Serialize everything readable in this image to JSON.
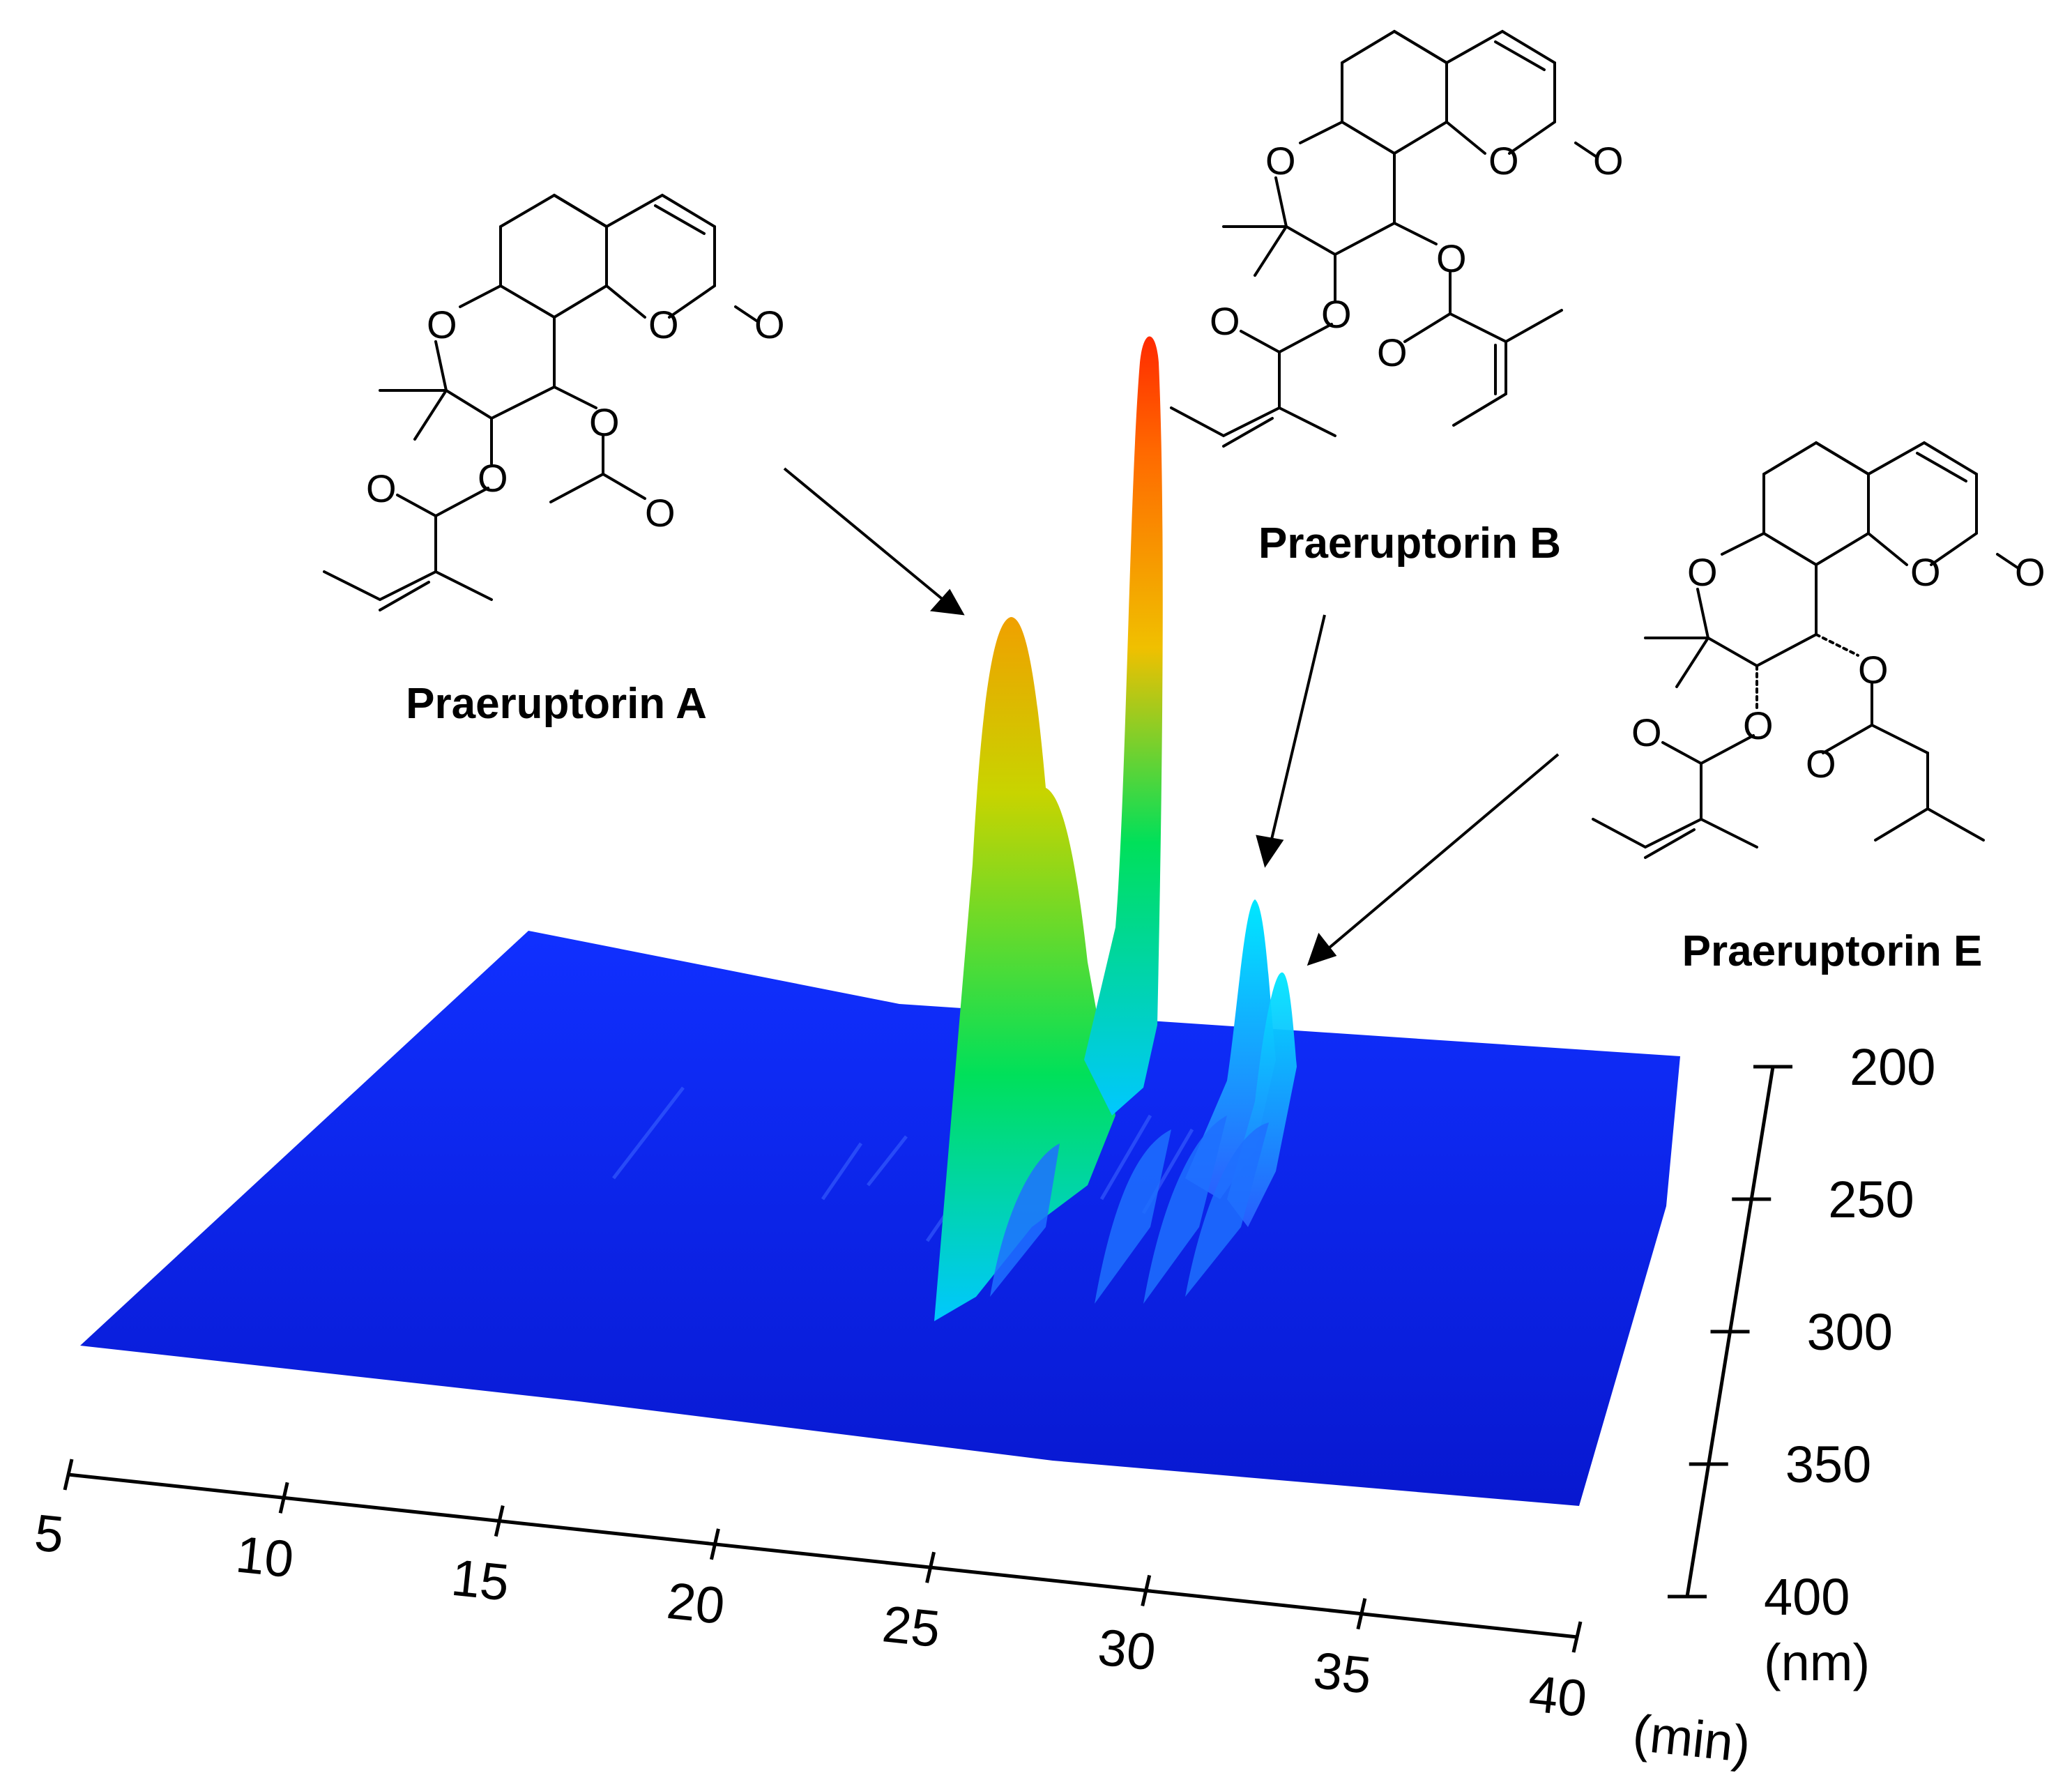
{
  "chart_data": {
    "type": "3d-surface",
    "title": "",
    "x_axis": {
      "ticks": [
        "5",
        "10",
        "15",
        "20",
        "25",
        "30",
        "35",
        "40"
      ],
      "unit": "(min)",
      "range": [
        5,
        40
      ]
    },
    "wavelength_axis": {
      "ticks": [
        "200",
        "250",
        "300",
        "350",
        "400"
      ],
      "unit": "(nm)",
      "range": [
        200,
        400
      ]
    },
    "colormap": [
      "#0a1ee0",
      "#00c8ff",
      "#00e05a",
      "#f0a000",
      "#ff2a00"
    ],
    "base_color": "#0a1ee0",
    "peaks": [
      {
        "name": "Praeruptorin A",
        "time": 25.5,
        "height": 0.62,
        "color": "#f0a000"
      },
      {
        "name": "",
        "time": 28.2,
        "height": 1.0,
        "color": "#ff2a00"
      },
      {
        "name": "Praeruptorin B",
        "time": 30.5,
        "height": 0.28,
        "color": "#00c8ff"
      },
      {
        "name": "Praeruptorin E",
        "time": 31.1,
        "height": 0.2,
        "color": "#00c8ff"
      }
    ]
  },
  "compounds": [
    {
      "name": "Praeruptorin A"
    },
    {
      "name": "Praeruptorin B"
    },
    {
      "name": "Praeruptorin E"
    }
  ],
  "atoms": {
    "oxygen": "O"
  }
}
